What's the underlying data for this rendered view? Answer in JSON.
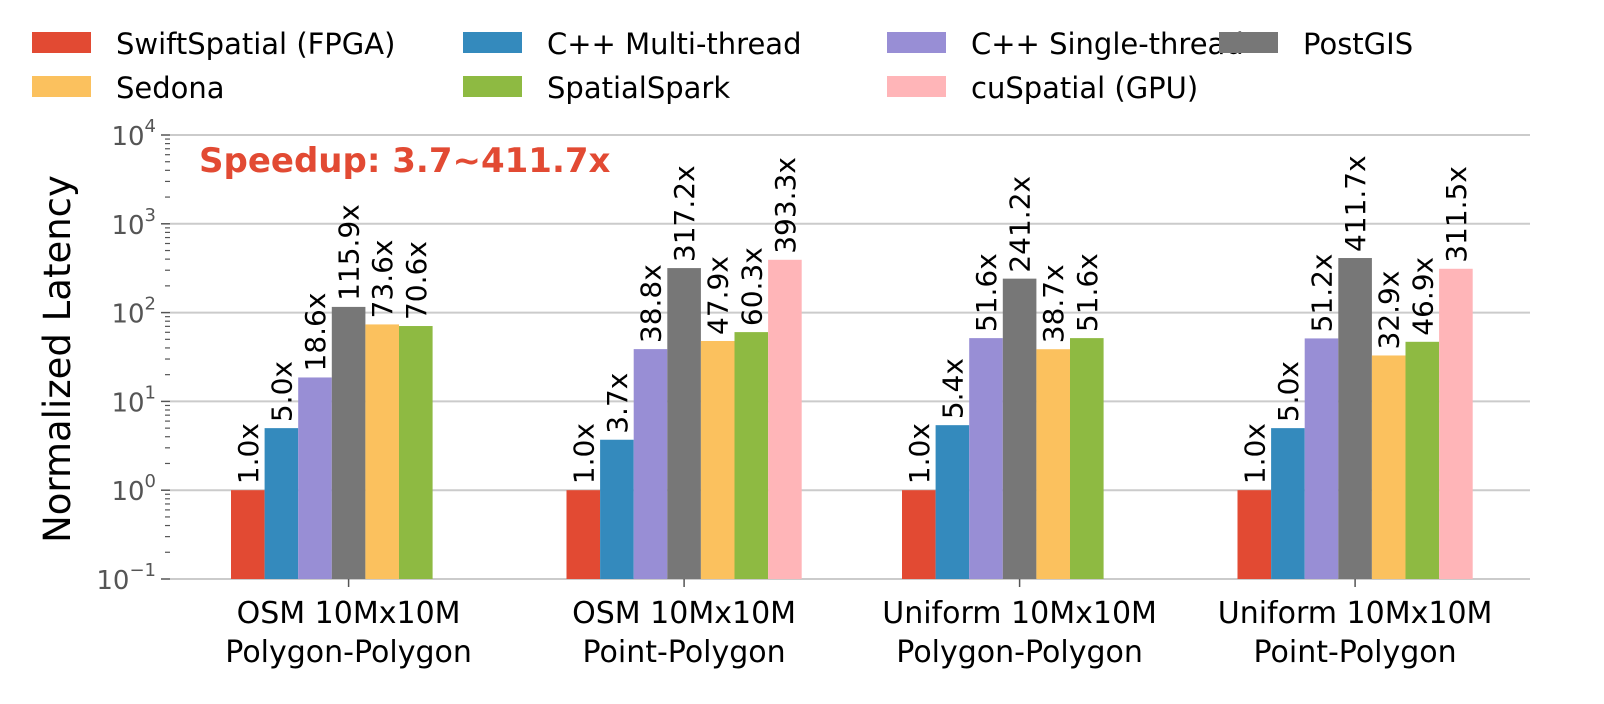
{
  "chart_data": {
    "type": "bar",
    "title": "",
    "xlabel": "",
    "ylabel": "Normalized Latency",
    "yscale": "log",
    "ylim": [
      0.1,
      10000
    ],
    "y_ticks": [
      {
        "base": "10",
        "exp": "−1"
      },
      {
        "base": "10",
        "exp": "0"
      },
      {
        "base": "10",
        "exp": "1"
      },
      {
        "base": "10",
        "exp": "2"
      },
      {
        "base": "10",
        "exp": "3"
      },
      {
        "base": "10",
        "exp": "4"
      }
    ],
    "grid": "horizontal",
    "legend_position": "top",
    "annotation": "Speedup: 3.7~411.7x",
    "annotation_color": "#e24a33",
    "categories": [
      [
        "OSM 10Mx10M",
        "Polygon-Polygon"
      ],
      [
        "OSM 10Mx10M",
        "Point-Polygon"
      ],
      [
        "Uniform 10Mx10M",
        "Polygon-Polygon"
      ],
      [
        "Uniform 10Mx10M",
        "Point-Polygon"
      ]
    ],
    "series": [
      {
        "name": "SwiftSpatial (FPGA)",
        "color": "#e24a33",
        "values": [
          1.0,
          1.0,
          1.0,
          1.0
        ],
        "labels": [
          "1.0x",
          "1.0x",
          "1.0x",
          "1.0x"
        ]
      },
      {
        "name": "C++ Multi-thread",
        "color": "#348abd",
        "values": [
          5.0,
          3.7,
          5.4,
          5.0
        ],
        "labels": [
          "5.0x",
          "3.7x",
          "5.4x",
          "5.0x"
        ]
      },
      {
        "name": "C++ Single-thread",
        "color": "#988ed5",
        "values": [
          18.6,
          38.8,
          51.6,
          51.2
        ],
        "labels": [
          "18.6x",
          "38.8x",
          "51.6x",
          "51.2x"
        ]
      },
      {
        "name": "PostGIS",
        "color": "#777777",
        "values": [
          115.9,
          317.2,
          241.2,
          411.7
        ],
        "labels": [
          "115.9x",
          "317.2x",
          "241.2x",
          "411.7x"
        ]
      },
      {
        "name": "Sedona",
        "color": "#fbc15e",
        "values": [
          73.6,
          47.9,
          38.7,
          32.9
        ],
        "labels": [
          "73.6x",
          "47.9x",
          "38.7x",
          "32.9x"
        ]
      },
      {
        "name": "SpatialSpark",
        "color": "#8eba42",
        "values": [
          70.6,
          60.3,
          51.6,
          46.9
        ],
        "labels": [
          "70.6x",
          "60.3x",
          "51.6x",
          "46.9x"
        ]
      },
      {
        "name": "cuSpatial (GPU)",
        "color": "#ffb5b8",
        "values": [
          null,
          393.3,
          null,
          311.5
        ],
        "labels": [
          null,
          "393.3x",
          null,
          "311.5x"
        ]
      }
    ]
  }
}
